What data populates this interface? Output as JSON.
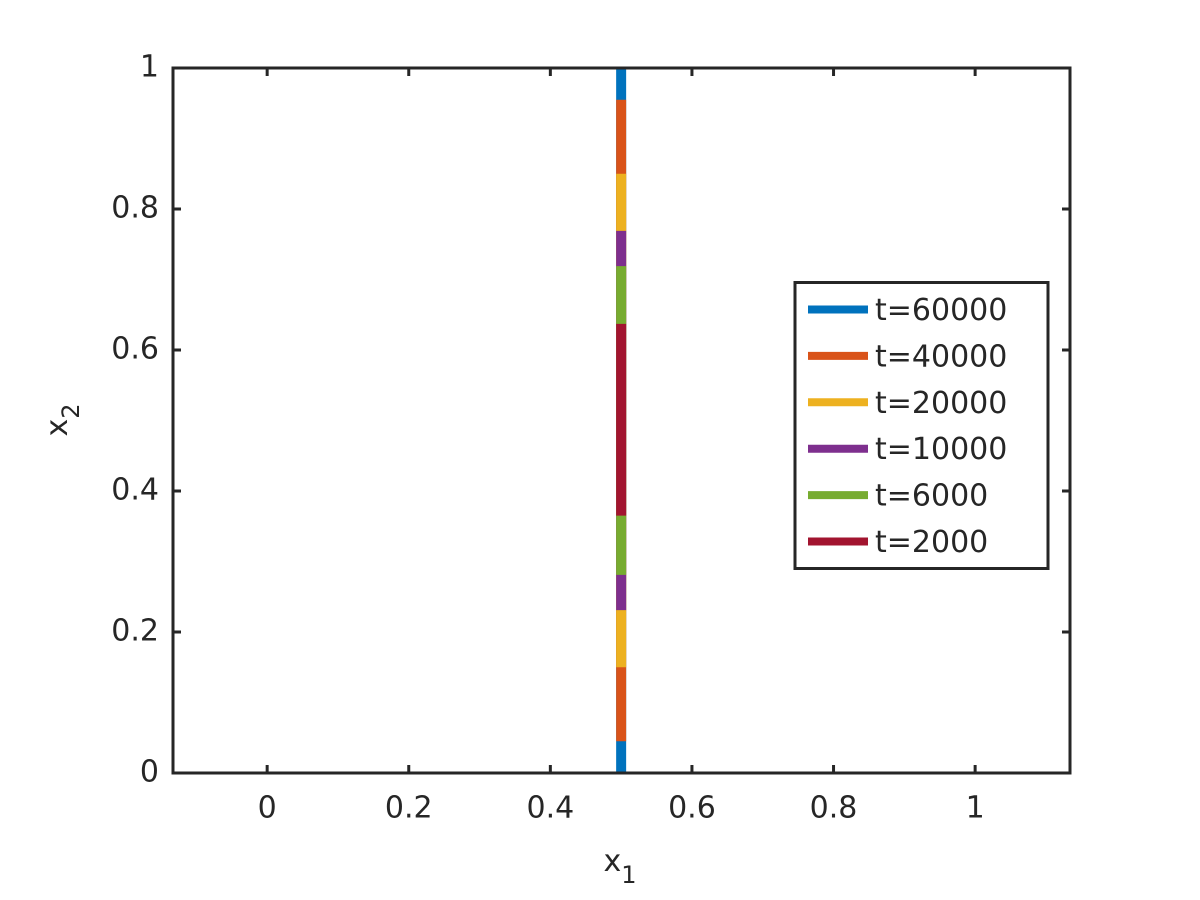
{
  "chart_data": {
    "type": "line",
    "xlabel": "x",
    "xlabel_subscript": "1",
    "ylabel": "x",
    "ylabel_subscript": "2",
    "xlim": [
      -0.133,
      1.134
    ],
    "ylim": [
      0,
      1
    ],
    "xticks": [
      0,
      0.2,
      0.4,
      0.6,
      0.8,
      1
    ],
    "yticks": [
      0,
      0.2,
      0.4,
      0.6,
      0.8,
      1
    ],
    "grid": false,
    "legend_position": "east",
    "series": [
      {
        "name": "t=60000",
        "color": "#0072bd",
        "x": [
          0.5,
          0.5
        ],
        "values": [
          0,
          1
        ]
      },
      {
        "name": "t=40000",
        "color": "#d95319",
        "x": [
          0.5,
          0.5
        ],
        "values": [
          0.045,
          0.955
        ]
      },
      {
        "name": "t=20000",
        "color": "#edb120",
        "x": [
          0.5,
          0.5
        ],
        "values": [
          0.15,
          0.85
        ]
      },
      {
        "name": "t=10000",
        "color": "#7e2f8e",
        "x": [
          0.5,
          0.5
        ],
        "values": [
          0.231,
          0.769
        ]
      },
      {
        "name": "t=6000",
        "color": "#77ac30",
        "x": [
          0.5,
          0.5
        ],
        "values": [
          0.281,
          0.719
        ]
      },
      {
        "name": "t=2000",
        "color": "#a2142f",
        "x": [
          0.5,
          0.5
        ],
        "values": [
          0.365,
          0.637
        ]
      }
    ]
  }
}
